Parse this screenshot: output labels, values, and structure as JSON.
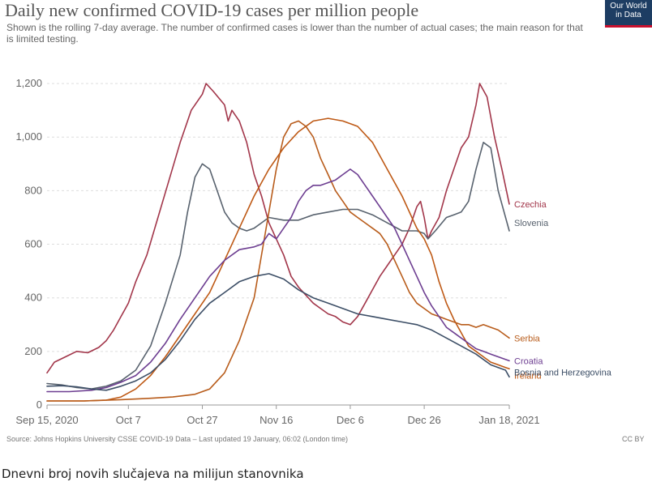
{
  "header": {
    "title": "Daily new confirmed COVID-19 cases per million people",
    "subtitle": "Shown is the rolling 7-day average. The number of confirmed cases is lower than the number of actual cases; the main reason for that is limited testing.",
    "logo_line1": "Our World",
    "logo_line2": "in Data"
  },
  "footer": {
    "source": "Source: Johns Hopkins University CSSE COVID-19 Data – Last updated 19 January, 06:02 (London time)",
    "license": "CC BY",
    "caption": "Dnevni broj novih slučajeva na milijun stanovnika"
  },
  "chart_data": {
    "type": "line",
    "x_ticks": [
      {
        "label": "Sep 15, 2020",
        "day": 0
      },
      {
        "label": "Oct 7",
        "day": 22
      },
      {
        "label": "Oct 27",
        "day": 42
      },
      {
        "label": "Nov 16",
        "day": 62
      },
      {
        "label": "Dec 6",
        "day": 82
      },
      {
        "label": "Dec 26",
        "day": 102
      },
      {
        "label": "Jan 18, 2021",
        "day": 125
      }
    ],
    "y_ticks": [
      0,
      200,
      400,
      600,
      800,
      1000,
      1200
    ],
    "y_tick_labels": [
      "0",
      "200",
      "400",
      "600",
      "800",
      "1,000",
      "1,200"
    ],
    "xlim": [
      0,
      125
    ],
    "ylim": [
      0,
      1300
    ],
    "grid": "horizontal dashed",
    "series": [
      {
        "name": "Czechia",
        "color": "#a2364a",
        "points": [
          [
            0,
            120
          ],
          [
            2,
            160
          ],
          [
            5,
            180
          ],
          [
            8,
            200
          ],
          [
            11,
            195
          ],
          [
            14,
            215
          ],
          [
            16,
            240
          ],
          [
            18,
            280
          ],
          [
            20,
            330
          ],
          [
            22,
            380
          ],
          [
            24,
            460
          ],
          [
            27,
            560
          ],
          [
            30,
            700
          ],
          [
            33,
            840
          ],
          [
            36,
            980
          ],
          [
            39,
            1100
          ],
          [
            42,
            1160
          ],
          [
            43,
            1200
          ],
          [
            45,
            1170
          ],
          [
            48,
            1120
          ],
          [
            49,
            1060
          ],
          [
            50,
            1100
          ],
          [
            52,
            1060
          ],
          [
            54,
            980
          ],
          [
            56,
            860
          ],
          [
            58,
            780
          ],
          [
            60,
            680
          ],
          [
            62,
            620
          ],
          [
            64,
            560
          ],
          [
            66,
            480
          ],
          [
            68,
            440
          ],
          [
            70,
            410
          ],
          [
            72,
            380
          ],
          [
            74,
            360
          ],
          [
            76,
            340
          ],
          [
            78,
            330
          ],
          [
            80,
            310
          ],
          [
            82,
            300
          ],
          [
            84,
            330
          ],
          [
            86,
            380
          ],
          [
            88,
            430
          ],
          [
            90,
            480
          ],
          [
            92,
            520
          ],
          [
            94,
            560
          ],
          [
            96,
            600
          ],
          [
            98,
            660
          ],
          [
            100,
            740
          ],
          [
            101,
            760
          ],
          [
            102,
            700
          ],
          [
            103,
            620
          ],
          [
            104,
            650
          ],
          [
            106,
            700
          ],
          [
            108,
            800
          ],
          [
            110,
            880
          ],
          [
            112,
            960
          ],
          [
            114,
            1000
          ],
          [
            116,
            1120
          ],
          [
            117,
            1200
          ],
          [
            119,
            1150
          ],
          [
            121,
            1000
          ],
          [
            123,
            880
          ],
          [
            125,
            750
          ]
        ]
      },
      {
        "name": "Slovenia",
        "color": "#58626e",
        "points": [
          [
            0,
            80
          ],
          [
            4,
            75
          ],
          [
            8,
            65
          ],
          [
            12,
            60
          ],
          [
            16,
            70
          ],
          [
            20,
            90
          ],
          [
            24,
            130
          ],
          [
            28,
            220
          ],
          [
            32,
            380
          ],
          [
            36,
            560
          ],
          [
            38,
            720
          ],
          [
            40,
            850
          ],
          [
            42,
            900
          ],
          [
            44,
            880
          ],
          [
            46,
            800
          ],
          [
            48,
            720
          ],
          [
            50,
            680
          ],
          [
            52,
            660
          ],
          [
            54,
            650
          ],
          [
            56,
            660
          ],
          [
            58,
            680
          ],
          [
            60,
            700
          ],
          [
            64,
            690
          ],
          [
            68,
            690
          ],
          [
            72,
            710
          ],
          [
            76,
            720
          ],
          [
            80,
            730
          ],
          [
            84,
            730
          ],
          [
            88,
            710
          ],
          [
            92,
            680
          ],
          [
            96,
            650
          ],
          [
            100,
            650
          ],
          [
            102,
            640
          ],
          [
            103,
            620
          ],
          [
            105,
            650
          ],
          [
            108,
            700
          ],
          [
            110,
            710
          ],
          [
            112,
            720
          ],
          [
            114,
            760
          ],
          [
            116,
            880
          ],
          [
            118,
            980
          ],
          [
            120,
            960
          ],
          [
            122,
            800
          ],
          [
            125,
            650
          ]
        ]
      },
      {
        "name": "Ireland",
        "color": "#be5915",
        "points": [
          [
            0,
            15
          ],
          [
            10,
            15
          ],
          [
            16,
            18
          ],
          [
            20,
            30
          ],
          [
            24,
            60
          ],
          [
            28,
            110
          ],
          [
            32,
            180
          ],
          [
            36,
            260
          ],
          [
            40,
            340
          ],
          [
            44,
            420
          ],
          [
            48,
            540
          ],
          [
            52,
            660
          ],
          [
            56,
            780
          ],
          [
            60,
            880
          ],
          [
            64,
            960
          ],
          [
            68,
            1020
          ],
          [
            72,
            1060
          ],
          [
            76,
            1070
          ],
          [
            80,
            1060
          ],
          [
            84,
            1040
          ],
          [
            88,
            980
          ],
          [
            92,
            880
          ],
          [
            96,
            780
          ],
          [
            100,
            660
          ],
          [
            102,
            620
          ],
          [
            104,
            560
          ],
          [
            106,
            460
          ],
          [
            108,
            380
          ],
          [
            110,
            320
          ],
          [
            112,
            270
          ],
          [
            114,
            220
          ],
          [
            116,
            200
          ],
          [
            118,
            180
          ],
          [
            120,
            160
          ],
          [
            122,
            150
          ],
          [
            124,
            140
          ],
          [
            125,
            135
          ]
        ]
      },
      {
        "name": "Serbia",
        "color": "#b85c1b",
        "points": [
          [
            0,
            15
          ],
          [
            10,
            15
          ],
          [
            20,
            20
          ],
          [
            28,
            25
          ],
          [
            34,
            30
          ],
          [
            40,
            40
          ],
          [
            44,
            60
          ],
          [
            48,
            120
          ],
          [
            52,
            240
          ],
          [
            56,
            400
          ],
          [
            58,
            560
          ],
          [
            60,
            720
          ],
          [
            62,
            880
          ],
          [
            64,
            1000
          ],
          [
            66,
            1050
          ],
          [
            68,
            1060
          ],
          [
            70,
            1040
          ],
          [
            72,
            1000
          ],
          [
            74,
            920
          ],
          [
            76,
            860
          ],
          [
            78,
            800
          ],
          [
            80,
            760
          ],
          [
            82,
            720
          ],
          [
            84,
            700
          ],
          [
            86,
            680
          ],
          [
            88,
            660
          ],
          [
            90,
            640
          ],
          [
            92,
            600
          ],
          [
            94,
            540
          ],
          [
            96,
            480
          ],
          [
            98,
            420
          ],
          [
            100,
            380
          ],
          [
            102,
            360
          ],
          [
            104,
            340
          ],
          [
            106,
            330
          ],
          [
            108,
            320
          ],
          [
            110,
            310
          ],
          [
            112,
            300
          ],
          [
            114,
            300
          ],
          [
            116,
            290
          ],
          [
            118,
            300
          ],
          [
            120,
            290
          ],
          [
            122,
            280
          ],
          [
            124,
            260
          ],
          [
            125,
            250
          ]
        ]
      },
      {
        "name": "Croatia",
        "color": "#6d3e91",
        "points": [
          [
            0,
            50
          ],
          [
            6,
            50
          ],
          [
            12,
            55
          ],
          [
            16,
            65
          ],
          [
            20,
            85
          ],
          [
            24,
            110
          ],
          [
            28,
            160
          ],
          [
            32,
            230
          ],
          [
            36,
            320
          ],
          [
            40,
            400
          ],
          [
            44,
            480
          ],
          [
            48,
            540
          ],
          [
            52,
            580
          ],
          [
            56,
            590
          ],
          [
            58,
            600
          ],
          [
            60,
            640
          ],
          [
            62,
            620
          ],
          [
            64,
            660
          ],
          [
            66,
            700
          ],
          [
            68,
            760
          ],
          [
            70,
            800
          ],
          [
            72,
            820
          ],
          [
            74,
            820
          ],
          [
            76,
            830
          ],
          [
            78,
            840
          ],
          [
            80,
            860
          ],
          [
            82,
            880
          ],
          [
            84,
            860
          ],
          [
            86,
            820
          ],
          [
            88,
            780
          ],
          [
            90,
            740
          ],
          [
            92,
            700
          ],
          [
            94,
            660
          ],
          [
            96,
            600
          ],
          [
            98,
            540
          ],
          [
            100,
            480
          ],
          [
            102,
            420
          ],
          [
            104,
            370
          ],
          [
            106,
            330
          ],
          [
            108,
            290
          ],
          [
            110,
            270
          ],
          [
            112,
            250
          ],
          [
            114,
            230
          ],
          [
            116,
            210
          ],
          [
            118,
            200
          ],
          [
            120,
            190
          ],
          [
            122,
            180
          ],
          [
            124,
            170
          ],
          [
            125,
            165
          ]
        ]
      },
      {
        "name": "Bosnia and Herzegovina",
        "color": "#3c4e66",
        "points": [
          [
            0,
            70
          ],
          [
            4,
            72
          ],
          [
            8,
            68
          ],
          [
            12,
            60
          ],
          [
            16,
            55
          ],
          [
            20,
            70
          ],
          [
            24,
            90
          ],
          [
            28,
            120
          ],
          [
            32,
            170
          ],
          [
            36,
            240
          ],
          [
            40,
            320
          ],
          [
            44,
            380
          ],
          [
            48,
            420
          ],
          [
            52,
            460
          ],
          [
            56,
            480
          ],
          [
            60,
            490
          ],
          [
            64,
            470
          ],
          [
            68,
            430
          ],
          [
            72,
            400
          ],
          [
            76,
            380
          ],
          [
            80,
            360
          ],
          [
            84,
            340
          ],
          [
            88,
            330
          ],
          [
            92,
            320
          ],
          [
            96,
            310
          ],
          [
            100,
            300
          ],
          [
            104,
            280
          ],
          [
            108,
            250
          ],
          [
            112,
            220
          ],
          [
            116,
            190
          ],
          [
            118,
            170
          ],
          [
            120,
            150
          ],
          [
            122,
            140
          ],
          [
            124,
            130
          ],
          [
            125,
            105
          ]
        ]
      }
    ]
  }
}
